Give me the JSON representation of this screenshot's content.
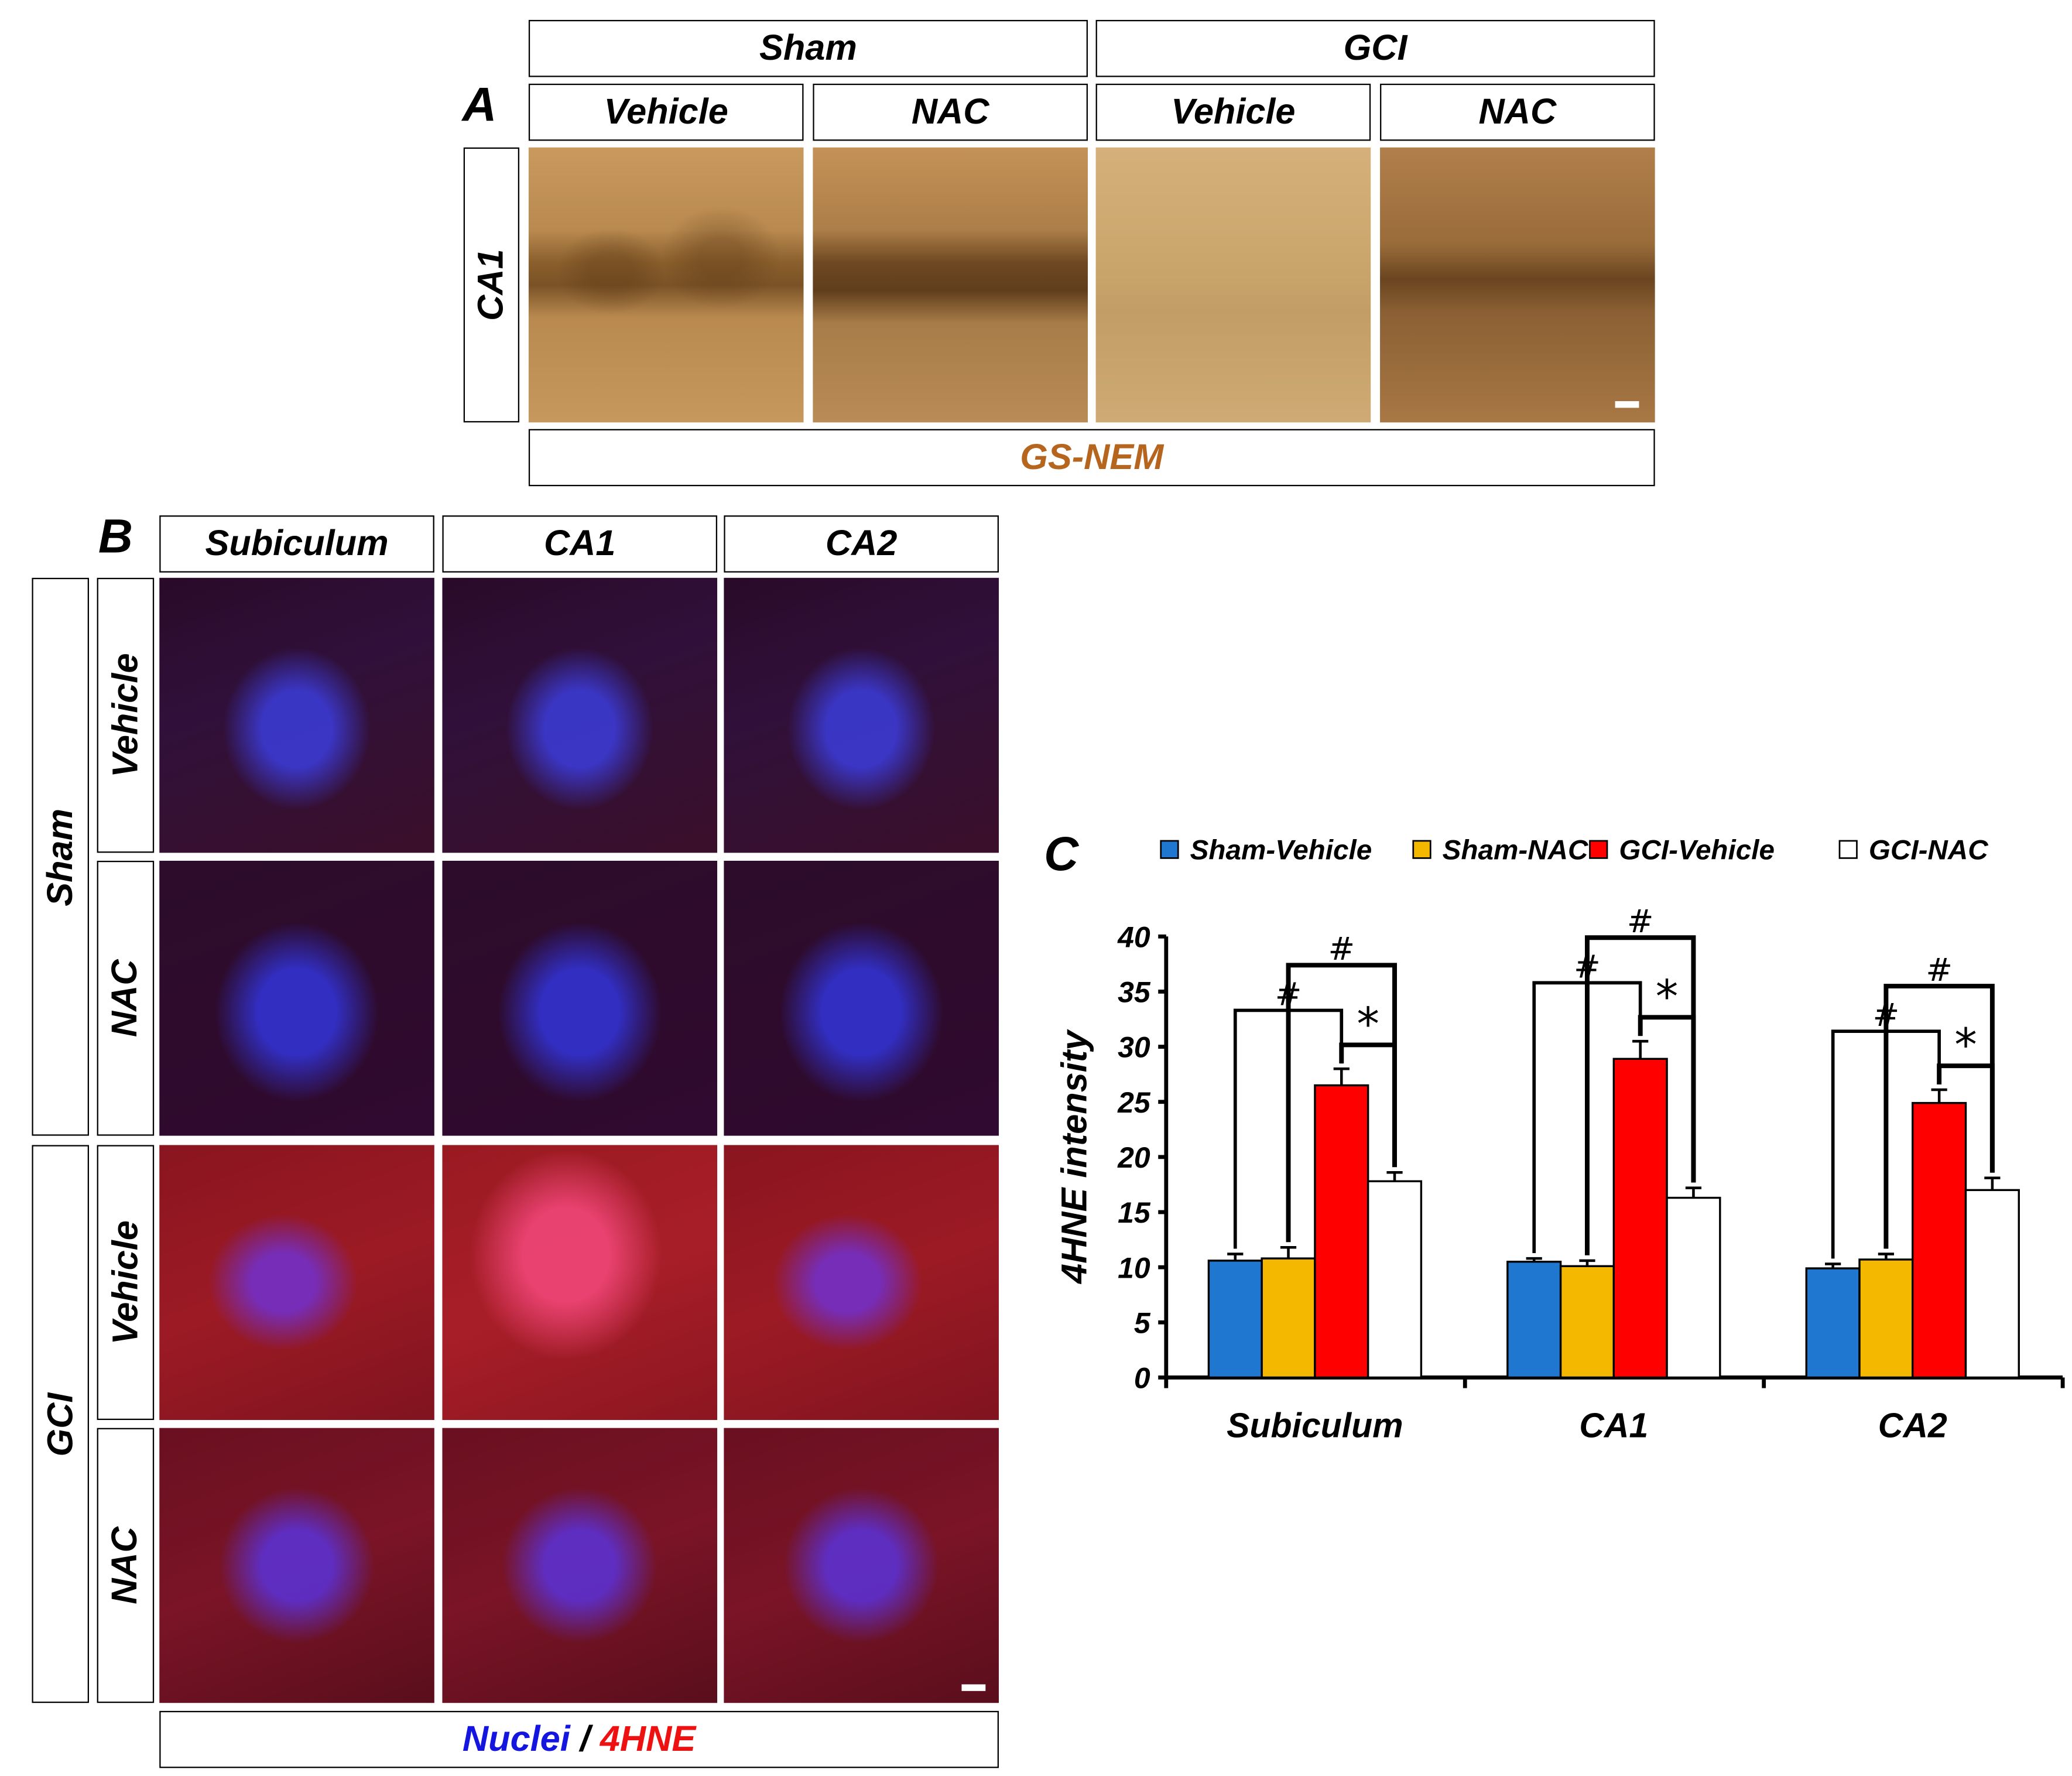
{
  "panel_a": {
    "letter": "A",
    "group_headers": [
      "Sham",
      "GCI"
    ],
    "treatment_headers": [
      "Vehicle",
      "NAC",
      "Vehicle",
      "NAC"
    ],
    "row_label": "CA1",
    "stain_label": "GS-NEM",
    "stain_color": "#b5651d"
  },
  "panel_b": {
    "letter": "B",
    "region_headers": [
      "Subiculum",
      "CA1",
      "CA2"
    ],
    "group_labels": [
      "Sham",
      "GCI"
    ],
    "treatment_labels": [
      "Vehicle",
      "NAC",
      "Vehicle",
      "NAC"
    ],
    "footer_nuclei": "Nuclei",
    "footer_sep": " / ",
    "footer_marker": "4HNE",
    "nuclei_color": "#1515e0",
    "marker_color": "#ee1111"
  },
  "chart_data": {
    "type": "bar",
    "panel_letter": "C",
    "categories": [
      "Subiculum",
      "CA1",
      "CA2"
    ],
    "ylabel": "4HNE intensity",
    "ylim": [
      0,
      40
    ],
    "yticks": [
      0,
      5,
      10,
      15,
      20,
      25,
      30,
      35,
      40
    ],
    "legend_position": "top",
    "series": [
      {
        "name": "Sham-Vehicle",
        "color": "#1f77d0",
        "values": [
          10.6,
          10.5,
          9.9
        ],
        "errors": [
          0.6,
          0.3,
          0.4
        ]
      },
      {
        "name": "Sham-NAC",
        "color": "#f5b800",
        "values": [
          10.8,
          10.1,
          10.7
        ],
        "errors": [
          1.0,
          0.5,
          0.5
        ]
      },
      {
        "name": "GCI-Vehicle",
        "color": "#ff0000",
        "values": [
          26.5,
          28.9,
          24.9
        ],
        "errors": [
          1.5,
          1.6,
          1.2
        ]
      },
      {
        "name": "GCI-NAC",
        "color": "#ffffff",
        "values": [
          17.8,
          16.3,
          17.0
        ],
        "errors": [
          0.8,
          0.9,
          1.1
        ]
      }
    ],
    "significance": {
      "hash": "#",
      "star": "*"
    }
  }
}
